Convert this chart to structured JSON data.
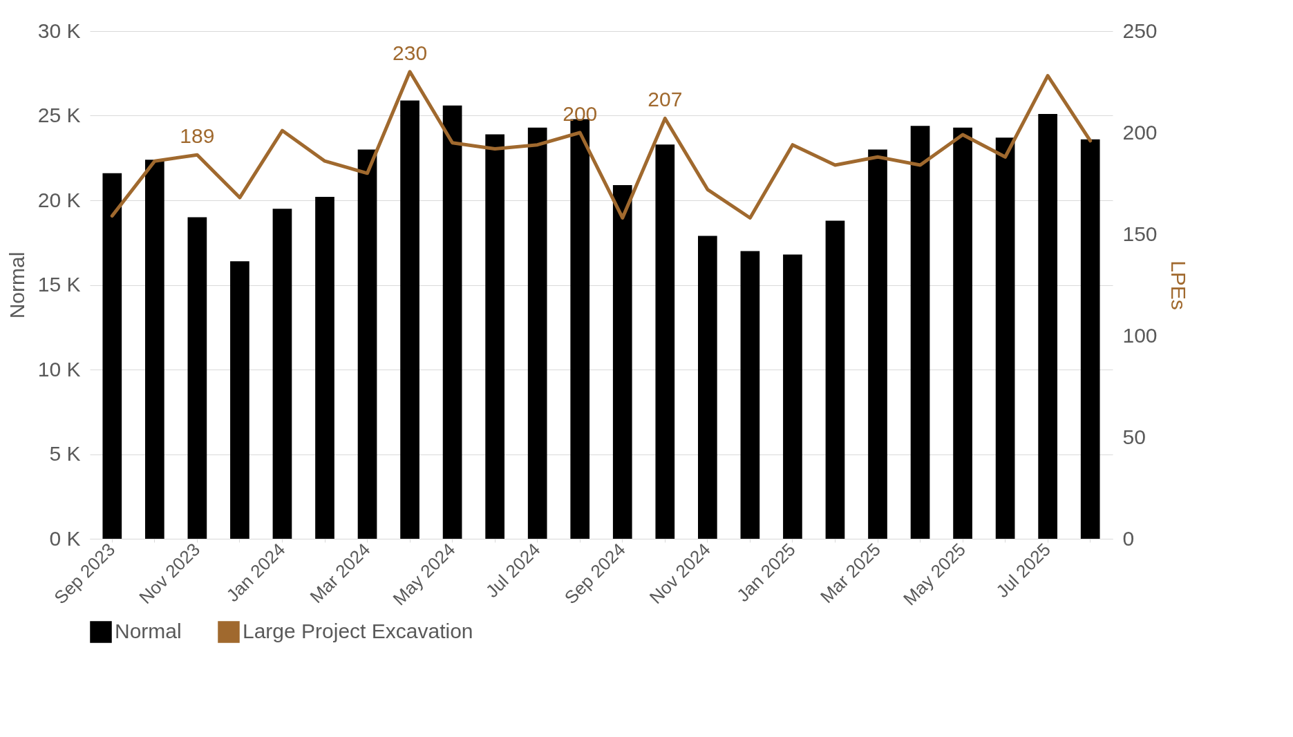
{
  "chart_data": {
    "type": "bar",
    "categories": [
      "Sep 2023",
      null,
      "Nov 2023",
      null,
      "Jan 2024",
      null,
      "Mar 2024",
      null,
      "May 2024",
      null,
      "Jul 2024",
      null,
      "Sep 2024",
      null,
      "Nov 2024",
      null,
      "Jan 2025",
      null,
      "Mar 2025",
      null,
      "May 2025",
      null,
      "Jul 2025",
      null
    ],
    "ylabel": "Normal",
    "y2label": "LPEs",
    "ylim": [
      0,
      30000
    ],
    "yticks": [
      {
        "value": 0,
        "label": "0 K"
      },
      {
        "value": 5000,
        "label": "5 K"
      },
      {
        "value": 10000,
        "label": "10 K"
      },
      {
        "value": 15000,
        "label": "15 K"
      },
      {
        "value": 20000,
        "label": "20 K"
      },
      {
        "value": 25000,
        "label": "25 K"
      },
      {
        "value": 30000,
        "label": "30 K"
      }
    ],
    "y2lim": [
      0,
      250
    ],
    "y2ticks": [
      0,
      50,
      100,
      150,
      200,
      250
    ],
    "grid": "y",
    "legend": "bottom",
    "series": [
      {
        "name": "Normal",
        "color": "#000000",
        "values": [
          21600,
          22400,
          19000,
          16400,
          19500,
          20200,
          23000,
          25900,
          25600,
          23900,
          24300,
          24800,
          20900,
          23300,
          17900,
          17000,
          16800,
          18800,
          23000,
          24400,
          24300,
          23700,
          25100,
          23600
        ]
      },
      {
        "name": "Large Project Excavation",
        "type": "line",
        "axis": "y2",
        "color": "#a0692e",
        "values": [
          159,
          186,
          189,
          168,
          201,
          186,
          180,
          230,
          195,
          192,
          194,
          200,
          158,
          207,
          172,
          158,
          194,
          184,
          188,
          184,
          199,
          188,
          228,
          196
        ],
        "value_labels": [
          null,
          null,
          "189",
          null,
          null,
          null,
          null,
          "230",
          null,
          null,
          null,
          "200",
          null,
          "207",
          null,
          null,
          null,
          null,
          null,
          null,
          null,
          null,
          null,
          null
        ]
      }
    ]
  }
}
